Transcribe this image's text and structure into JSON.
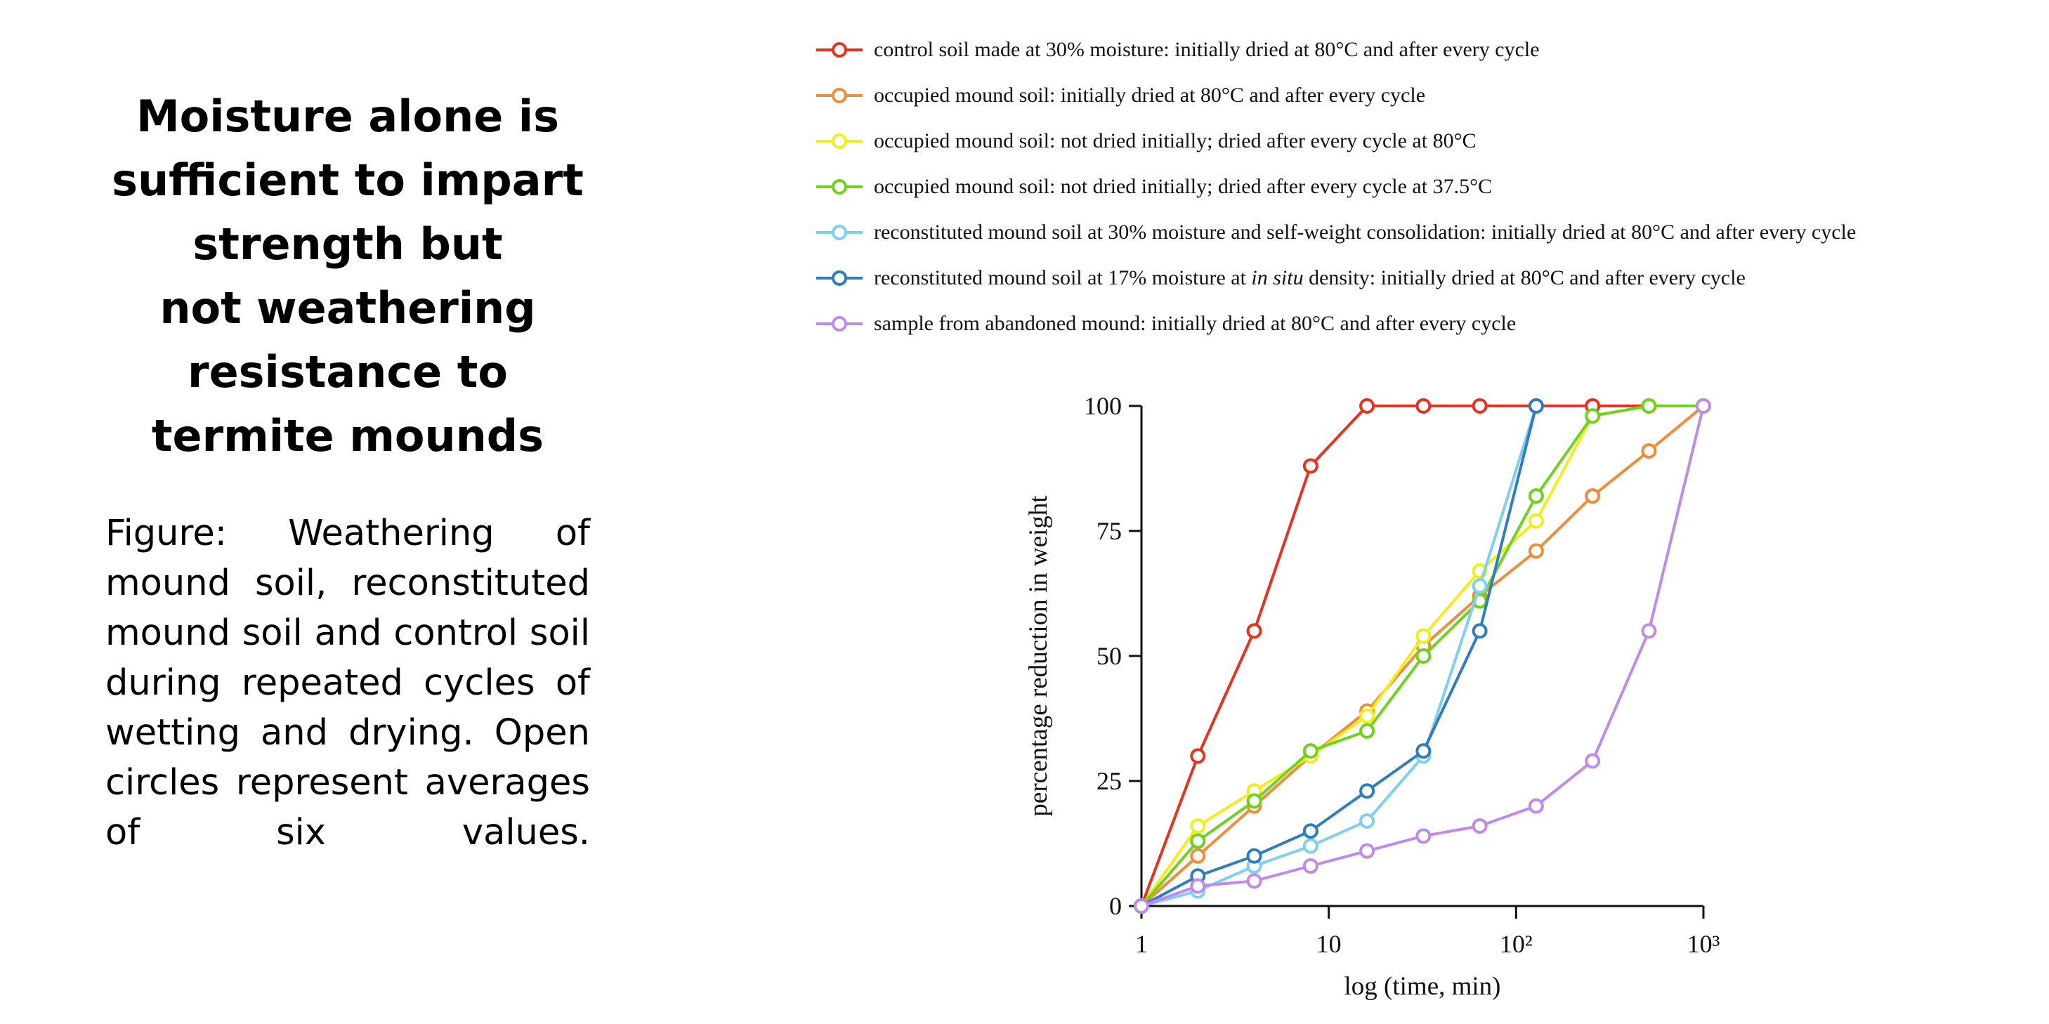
{
  "headline": [
    "Moisture alone is",
    "sufficient to impart",
    "strength but",
    "not weathering",
    "resistance to",
    "termite mounds"
  ],
  "caption": "Figure: Weathering of mound soil, reconstituted mound soil and control soil during repeated cycles of wetting and drying. Open circles represent averages of six values.",
  "chart_data": {
    "type": "line",
    "xscale": "log",
    "xlim": [
      1,
      1000
    ],
    "ylim": [
      0,
      100
    ],
    "xticks": [
      "1",
      "10",
      "10²",
      "10³"
    ],
    "yticks": [
      "0",
      "25",
      "50",
      "75",
      "100"
    ],
    "xlabel": "log (time, min)",
    "ylabel": "percentage reduction in weight",
    "grid": false,
    "legend_position": "top",
    "series": [
      {
        "name": "control soil made at 30% moisture: initially dried at 80°C and after every cycle",
        "color": "#e8321e",
        "x": [
          1,
          2,
          4,
          8,
          16,
          32,
          64,
          128,
          256,
          512,
          1000
        ],
        "y": [
          0,
          30,
          55,
          88,
          100,
          100,
          100,
          100,
          100,
          100,
          100
        ]
      },
      {
        "name": "occupied mound soil: initially dried at 80°C and after every cycle",
        "color": "#ee8d3a",
        "x": [
          1,
          2,
          4,
          8,
          16,
          32,
          64,
          128,
          256,
          512,
          1000
        ],
        "y": [
          0,
          10,
          20,
          30,
          39,
          52,
          62,
          71,
          82,
          91,
          100
        ]
      },
      {
        "name": "occupied mound soil: not dried initially; dried after every cycle at 80°C",
        "color": "#f2ee1c",
        "x": [
          1,
          2,
          4,
          8,
          16,
          32,
          64,
          128,
          256,
          512,
          1000
        ],
        "y": [
          0,
          16,
          23,
          30,
          38,
          54,
          67,
          77,
          98,
          100,
          100
        ]
      },
      {
        "name": "occupied mound soil: not dried initially; dried after every cycle at 37.5°C",
        "color": "#6fd31e",
        "x": [
          1,
          2,
          4,
          8,
          16,
          32,
          64,
          128,
          256,
          512,
          1000
        ],
        "y": [
          0,
          13,
          21,
          31,
          35,
          50,
          61,
          82,
          98,
          100,
          100
        ]
      },
      {
        "name": "reconstituted mound soil at 30% moisture and self-weight consolidation: initially dried at 80°C and after every cycle",
        "color": "#7fcff0",
        "x": [
          1,
          2,
          4,
          8,
          16,
          32,
          64,
          128
        ],
        "y": [
          0,
          3,
          8,
          12,
          17,
          30,
          64,
          100
        ]
      },
      {
        "name": "reconstituted mound soil at 17% moisture at in situ density: initially dried at 80°C and after every cycle",
        "color": "#2f7dc0",
        "x": [
          1,
          2,
          4,
          8,
          16,
          32,
          64,
          128
        ],
        "y": [
          0,
          6,
          10,
          15,
          23,
          31,
          55,
          100
        ]
      },
      {
        "name": "sample from abandoned mound: initially dried at 80°C and after every cycle",
        "color": "#c08ae8",
        "x": [
          1,
          2,
          4,
          8,
          16,
          32,
          64,
          128,
          256,
          512,
          1000
        ],
        "y": [
          0,
          4,
          5,
          8,
          11,
          14,
          16,
          20,
          29,
          55,
          100
        ]
      }
    ]
  }
}
